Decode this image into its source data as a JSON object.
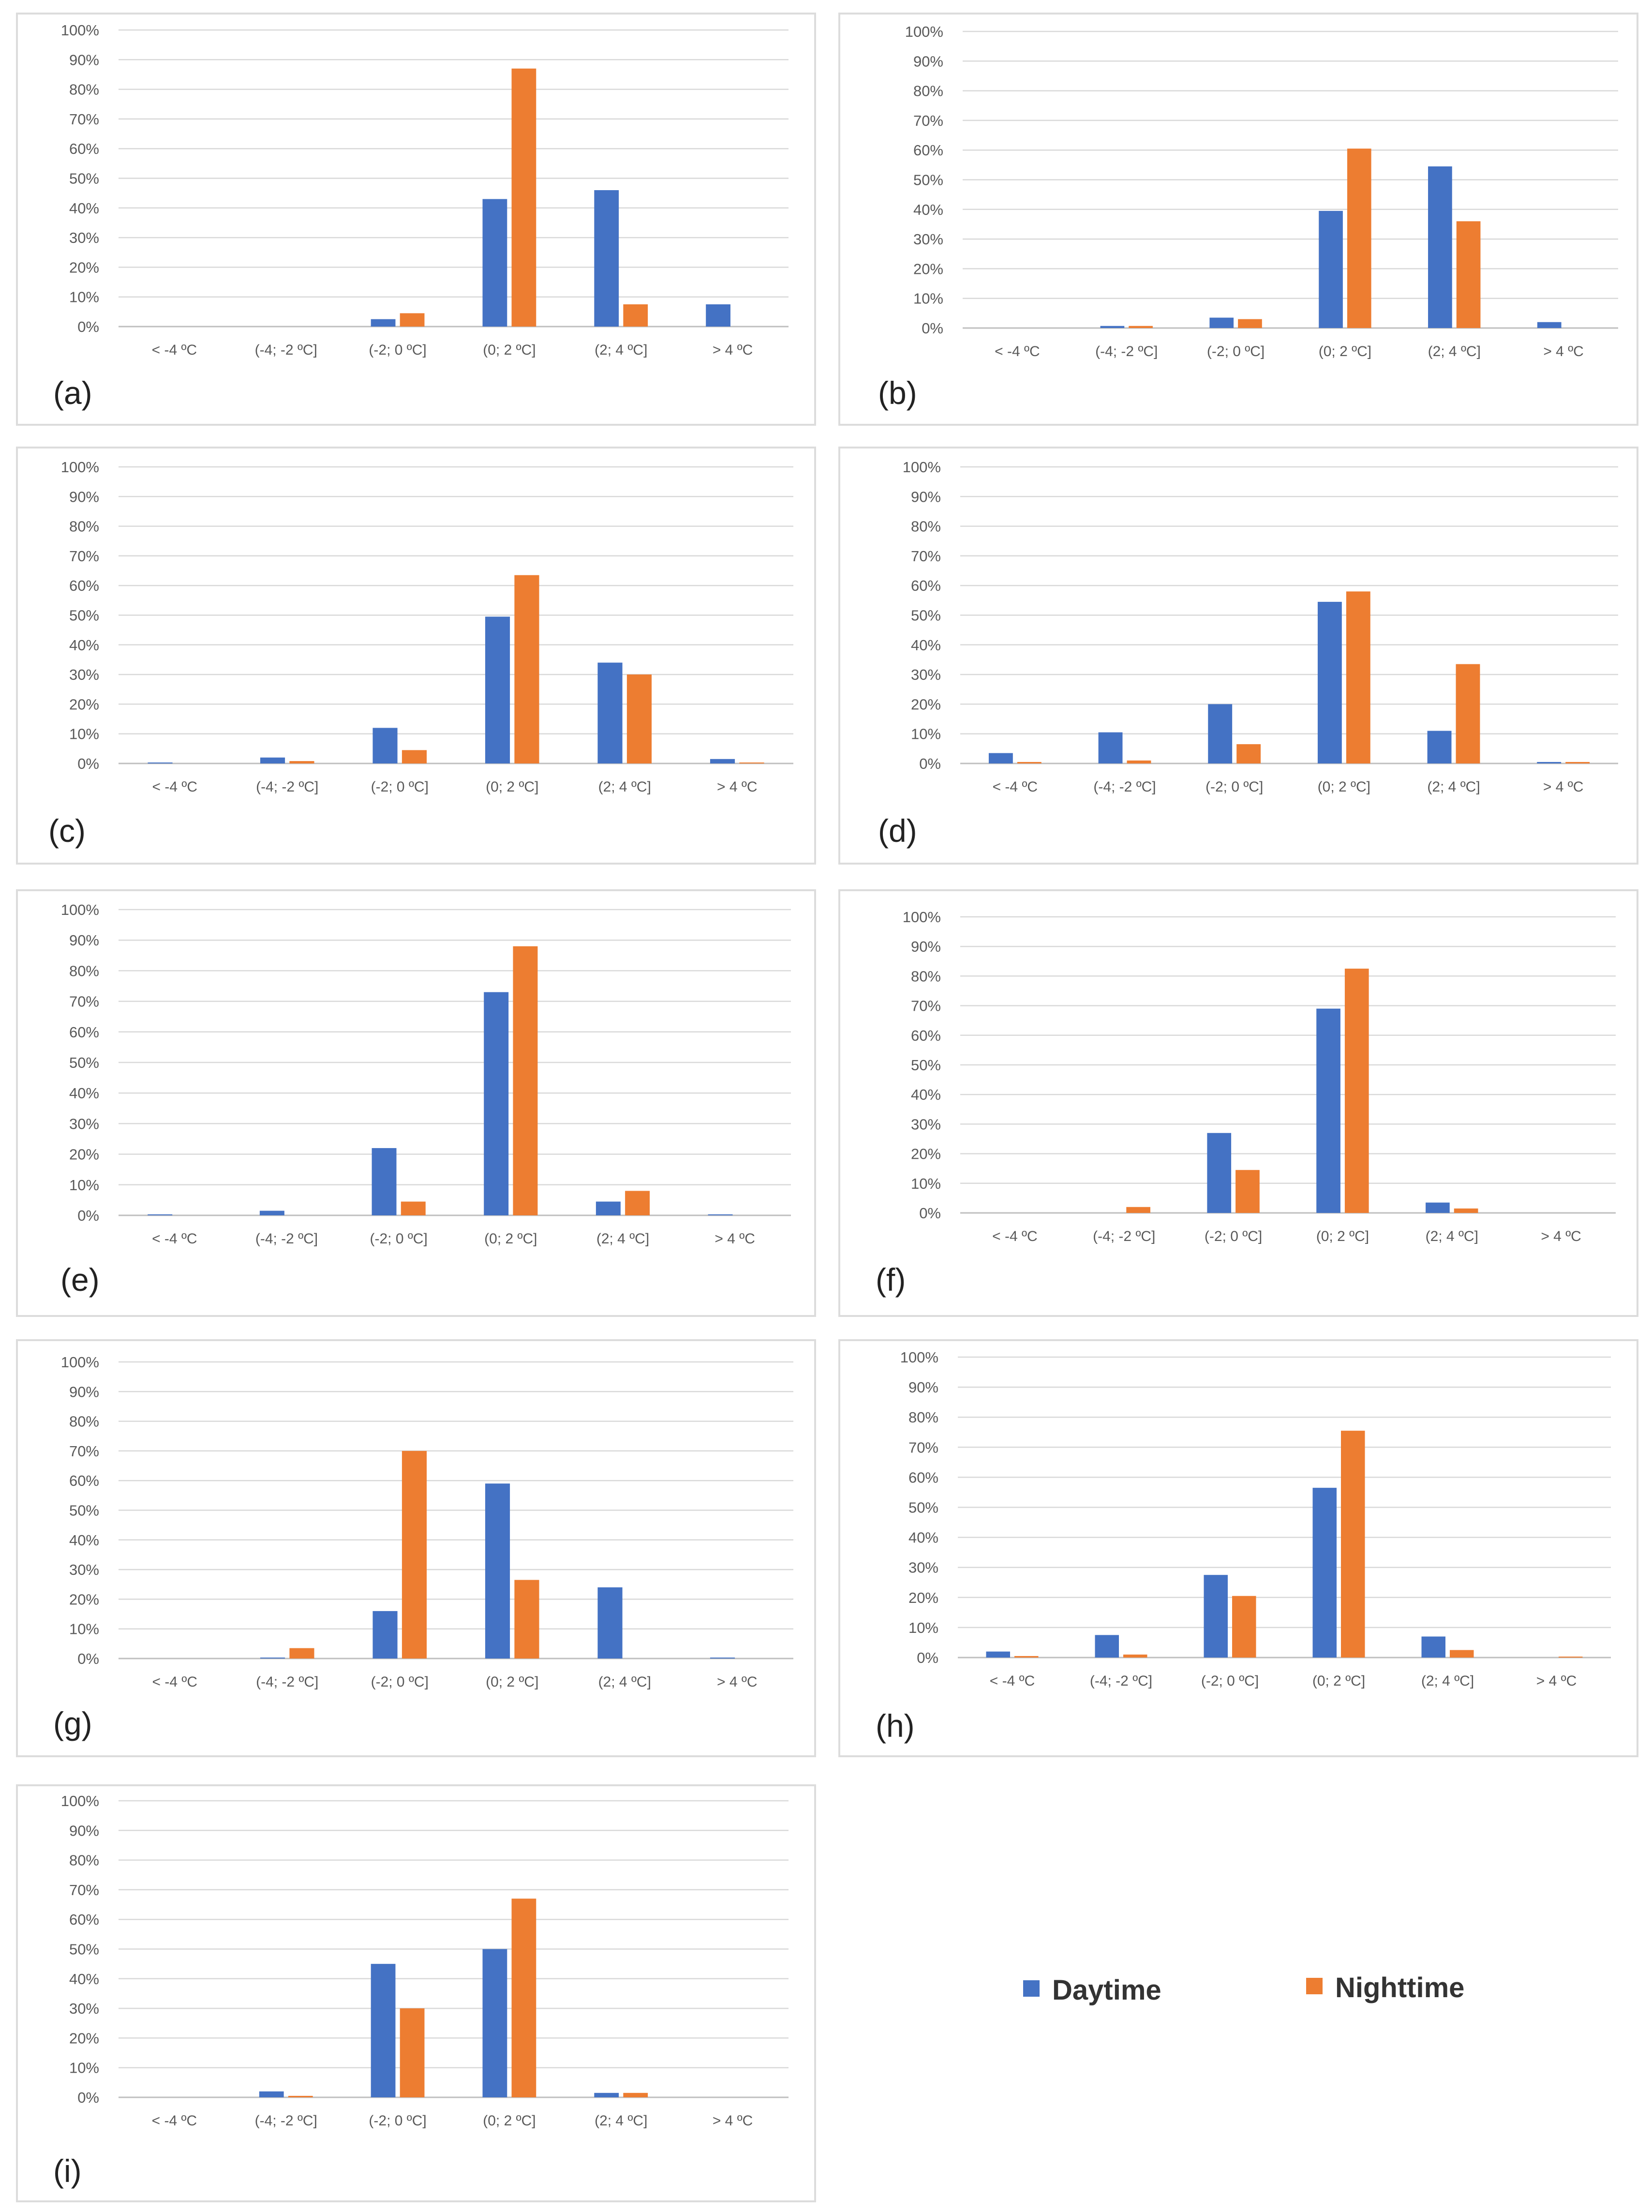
{
  "legend": [
    {
      "name": "Daytime",
      "color": "#4472c4"
    },
    {
      "name": "Nighttime",
      "color": "#ed7d31"
    }
  ],
  "y_ticks": [
    "0%",
    "10%",
    "20%",
    "30%",
    "40%",
    "50%",
    "60%",
    "70%",
    "80%",
    "90%",
    "100%"
  ],
  "chart_data": [
    {
      "type": "bar",
      "label": "(a)",
      "categories": [
        "< -4 ºC",
        "(-4; -2 ºC]",
        "(-2; 0 ºC]",
        "(0; 2 ºC]",
        "(2; 4 ºC]",
        "> 4 ºC"
      ],
      "ylim": [
        0,
        100
      ],
      "series": [
        {
          "name": "Daytime",
          "values": [
            0,
            0,
            2.5,
            43,
            46,
            7.5
          ]
        },
        {
          "name": "Nighttime",
          "values": [
            0,
            0,
            4.5,
            87,
            7.5,
            0
          ]
        }
      ]
    },
    {
      "type": "bar",
      "label": "(b)",
      "categories": [
        "< -4 ºC",
        "(-4; -2 ºC]",
        "(-2; 0 ºC]",
        "(0; 2 ºC]",
        "(2; 4 ºC]",
        "> 4 ºC"
      ],
      "ylim": [
        0,
        100
      ],
      "series": [
        {
          "name": "Daytime",
          "values": [
            0,
            0.7,
            3.5,
            39.5,
            54.5,
            2
          ]
        },
        {
          "name": "Nighttime",
          "values": [
            0,
            0.7,
            3,
            60.5,
            36,
            0
          ]
        }
      ]
    },
    {
      "type": "bar",
      "label": "(c)",
      "categories": [
        "< -4 ºC",
        "(-4; -2 ºC]",
        "(-2; 0 ºC]",
        "(0; 2 ºC]",
        "(2; 4 ºC]",
        "> 4 ºC"
      ],
      "ylim": [
        0,
        100
      ],
      "series": [
        {
          "name": "Daytime",
          "values": [
            0.3,
            2,
            12,
            49.5,
            34,
            1.5
          ]
        },
        {
          "name": "Nighttime",
          "values": [
            0,
            0.8,
            4.5,
            63.5,
            30,
            0.3
          ]
        }
      ]
    },
    {
      "type": "bar",
      "label": "(d)",
      "categories": [
        "< -4 ºC",
        "(-4; -2 ºC]",
        "(-2; 0 ºC]",
        "(0; 2 ºC]",
        "(2; 4 ºC]",
        "> 4 ºC"
      ],
      "ylim": [
        0,
        100
      ],
      "series": [
        {
          "name": "Daytime",
          "values": [
            3.5,
            10.5,
            20,
            54.5,
            11,
            0.5
          ]
        },
        {
          "name": "Nighttime",
          "values": [
            0.5,
            1,
            6.5,
            58,
            33.5,
            0.5
          ]
        }
      ]
    },
    {
      "type": "bar",
      "label": "(e)",
      "categories": [
        "< -4 ºC",
        "(-4; -2 ºC]",
        "(-2; 0 ºC]",
        "(0; 2 ºC]",
        "(2; 4 ºC]",
        "> 4 ºC"
      ],
      "ylim": [
        0,
        100
      ],
      "series": [
        {
          "name": "Daytime",
          "values": [
            0.2,
            1.5,
            22,
            73,
            4.5,
            0.2
          ]
        },
        {
          "name": "Nighttime",
          "values": [
            0,
            0,
            4.5,
            88,
            8,
            0
          ]
        }
      ]
    },
    {
      "type": "bar",
      "label": "(f)",
      "categories": [
        "< -4 ºC",
        "(-4; -2 ºC]",
        "(-2; 0 ºC]",
        "(0; 2 ºC]",
        "(2; 4 ºC]",
        "> 4 ºC"
      ],
      "ylim": [
        0,
        100
      ],
      "series": [
        {
          "name": "Daytime",
          "values": [
            0,
            0,
            27,
            69,
            3.5,
            0
          ]
        },
        {
          "name": "Nighttime",
          "values": [
            0,
            2,
            14.5,
            82.5,
            1.5,
            0
          ]
        }
      ]
    },
    {
      "type": "bar",
      "label": "(g)",
      "categories": [
        "< -4 ºC",
        "(-4; -2 ºC]",
        "(-2; 0 ºC]",
        "(0; 2 ºC]",
        "(2; 4 ºC]",
        "> 4 ºC"
      ],
      "ylim": [
        0,
        100
      ],
      "series": [
        {
          "name": "Daytime",
          "values": [
            0,
            0.3,
            16,
            59,
            24,
            0.2
          ]
        },
        {
          "name": "Nighttime",
          "values": [
            0,
            3.5,
            70,
            26.5,
            0,
            0
          ]
        }
      ]
    },
    {
      "type": "bar",
      "label": "(h)",
      "categories": [
        "< -4 ºC",
        "(-4; -2 ºC]",
        "(-2; 0 ºC]",
        "(0; 2 ºC]",
        "(2; 4 ºC]",
        "> 4 ºC"
      ],
      "ylim": [
        0,
        100
      ],
      "series": [
        {
          "name": "Daytime",
          "values": [
            2,
            7.5,
            27.5,
            56.5,
            7,
            0
          ]
        },
        {
          "name": "Nighttime",
          "values": [
            0.5,
            1,
            20.5,
            75.5,
            2.5,
            0.3
          ]
        }
      ]
    },
    {
      "type": "bar",
      "label": "(i)",
      "categories": [
        "< -4 ºC",
        "(-4; -2 ºC]",
        "(-2; 0 ºC]",
        "(0; 2 ºC]",
        "(2; 4 ºC]",
        "> 4 ºC"
      ],
      "ylim": [
        0,
        100
      ],
      "series": [
        {
          "name": "Daytime",
          "values": [
            0,
            2,
            45,
            50,
            1.5,
            0
          ]
        },
        {
          "name": "Nighttime",
          "values": [
            0,
            0.5,
            30,
            67,
            1.5,
            0
          ]
        }
      ]
    }
  ]
}
